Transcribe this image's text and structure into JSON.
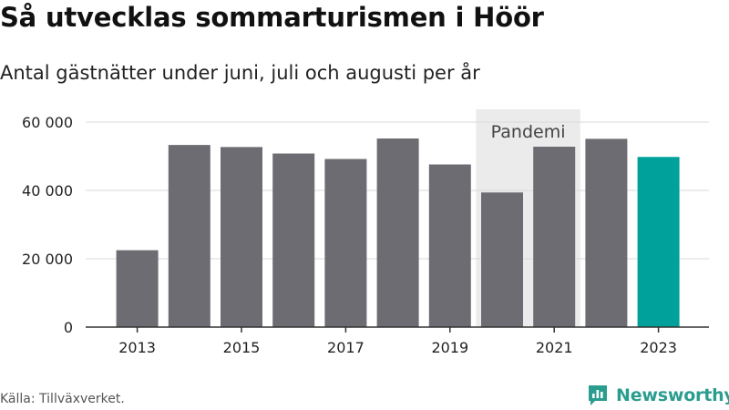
{
  "header": {
    "title": "Så utvecklas sommarturismen i Höör",
    "subtitle": "Antal gästnätter under juni, juli och augusti per år"
  },
  "footer": {
    "source": "Källa: Tillväxverket.",
    "brand": "Newsworthy",
    "brand_icon": "newsworthy-logo-icon"
  },
  "colors": {
    "bar": "#6d6c72",
    "highlight": "#00a19a",
    "band": "#ebebeb",
    "grid": "#d9d9d9",
    "axis": "#333333",
    "brand": "#2a9d8f"
  },
  "chart_data": {
    "type": "bar",
    "title": "Så utvecklas sommarturismen i Höör",
    "subtitle": "Antal gästnätter under juni, juli och augusti per år",
    "xlabel": "",
    "ylabel": "",
    "categories": [
      2013,
      2014,
      2015,
      2016,
      2017,
      2018,
      2019,
      2020,
      2021,
      2022,
      2023
    ],
    "values": [
      22500,
      53300,
      52700,
      50800,
      49200,
      55200,
      47600,
      39400,
      52800,
      55100,
      49800
    ],
    "highlight_category": 2023,
    "ylim": [
      0,
      60000
    ],
    "yticks": [
      0,
      20000,
      40000,
      60000
    ],
    "ytick_labels": [
      "0",
      "20 000",
      "40 000",
      "60 000"
    ],
    "xticks": [
      2013,
      2015,
      2017,
      2019,
      2021,
      2023
    ],
    "xtick_labels": [
      "2013",
      "2015",
      "2017",
      "2019",
      "2021",
      "2023"
    ],
    "grid": true,
    "annotations": [
      {
        "label": "Pandemi",
        "x_from": 2020,
        "x_to": 2021
      }
    ]
  }
}
